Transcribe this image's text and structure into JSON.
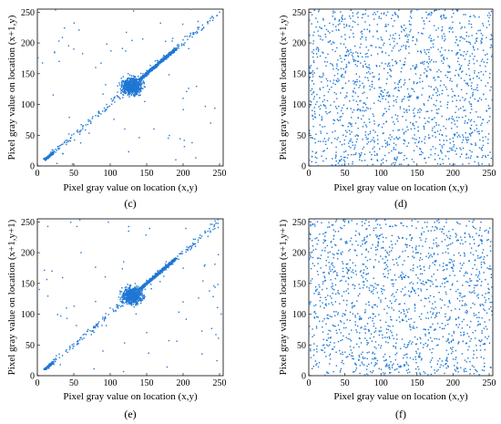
{
  "panels": [
    {
      "caption": "(c)",
      "xlabel": "Pixel gray value on location (x,y)",
      "ylabel": "Pixel gray value on location (x+1,y)"
    },
    {
      "caption": "(d)",
      "xlabel": "Pixel gray value on location (x,y)",
      "ylabel": "Pixel gray value on location (x+1,y)"
    },
    {
      "caption": "(e)",
      "xlabel": "Pixel gray value on location (x,y)",
      "ylabel": "Pixel gray value on location (x+1,y+1)"
    },
    {
      "caption": "(f)",
      "xlabel": "Pixel gray value on location (x,y)",
      "ylabel": "Pixel gray value on location (x+1,y+1)"
    }
  ],
  "chart_data": [
    {
      "type": "scatter",
      "xlabel": "Pixel gray value on location (x,y)",
      "ylabel": "Pixel gray value on location (x+1,y)",
      "xlim": [
        0,
        255
      ],
      "ylim": [
        0,
        255
      ],
      "xticks": [
        0,
        50,
        100,
        150,
        200,
        250
      ],
      "yticks": [
        0,
        50,
        100,
        150,
        200,
        250
      ],
      "distribution": "correlated",
      "series": [
        {
          "color": "#1f77d4",
          "values": [
            [
              12,
              10
            ],
            [
              14,
              15
            ],
            [
              16,
              14
            ],
            [
              18,
              18
            ],
            [
              20,
              21
            ],
            [
              15,
              12
            ],
            [
              22,
              19
            ],
            [
              25,
              27
            ],
            [
              30,
              32
            ],
            [
              40,
              38
            ],
            [
              50,
              52
            ],
            [
              60,
              58
            ],
            [
              70,
              75
            ],
            [
              80,
              82
            ],
            [
              95,
              100
            ],
            [
              105,
              110
            ],
            [
              110,
              120
            ],
            [
              115,
              118
            ],
            [
              120,
              128
            ],
            [
              125,
              130
            ],
            [
              130,
              125
            ],
            [
              135,
              140
            ],
            [
              140,
              138
            ],
            [
              145,
              150
            ],
            [
              150,
              155
            ],
            [
              155,
              158
            ],
            [
              160,
              162
            ],
            [
              165,
              168
            ],
            [
              170,
              172
            ],
            [
              175,
              178
            ],
            [
              180,
              182
            ],
            [
              185,
              186
            ],
            [
              190,
              192
            ],
            [
              200,
              205
            ],
            [
              210,
              212
            ],
            [
              220,
              225
            ],
            [
              240,
              242
            ],
            [
              250,
              250
            ],
            [
              30,
              170
            ],
            [
              50,
              190
            ],
            [
              160,
              60
            ],
            [
              200,
              110
            ],
            [
              190,
              10
            ],
            [
              80,
              160
            ],
            [
              120,
              60
            ]
          ]
        }
      ]
    },
    {
      "type": "scatter",
      "xlabel": "Pixel gray value on location (x,y)",
      "ylabel": "Pixel gray value on location (x+1,y)",
      "xlim": [
        0,
        255
      ],
      "ylim": [
        0,
        255
      ],
      "xticks": [
        0,
        50,
        100,
        150,
        200,
        250
      ],
      "yticks": [
        0,
        50,
        100,
        150,
        200,
        250
      ],
      "distribution": "uniform",
      "series": [
        {
          "color": "#1f77d4",
          "values": [
            [
              10,
              240
            ],
            [
              35,
              200
            ],
            [
              60,
              180
            ],
            [
              85,
              150
            ],
            [
              110,
              120
            ],
            [
              135,
              90
            ],
            [
              160,
              60
            ],
            [
              185,
              30
            ],
            [
              210,
              15
            ],
            [
              235,
              220
            ],
            [
              20,
              40
            ],
            [
              45,
              90
            ],
            [
              70,
              20
            ],
            [
              95,
              230
            ],
            [
              120,
              170
            ],
            [
              145,
              210
            ],
            [
              170,
              110
            ],
            [
              195,
              160
            ],
            [
              220,
              70
            ],
            [
              245,
              130
            ]
          ]
        }
      ]
    },
    {
      "type": "scatter",
      "xlabel": "Pixel gray value on location (x,y)",
      "ylabel": "Pixel gray value on location (x+1,y+1)",
      "xlim": [
        0,
        255
      ],
      "ylim": [
        0,
        255
      ],
      "xticks": [
        0,
        50,
        100,
        150,
        200,
        250
      ],
      "yticks": [
        0,
        50,
        100,
        150,
        200,
        250
      ],
      "distribution": "correlated",
      "series": [
        {
          "color": "#1f77d4",
          "values": [
            [
              12,
              10
            ],
            [
              14,
              15
            ],
            [
              16,
              12
            ],
            [
              18,
              17
            ],
            [
              20,
              22
            ],
            [
              25,
              28
            ],
            [
              30,
              35
            ],
            [
              40,
              42
            ],
            [
              50,
              48
            ],
            [
              60,
              62
            ],
            [
              75,
              72
            ],
            [
              90,
              95
            ],
            [
              100,
              110
            ],
            [
              110,
              115
            ],
            [
              118,
              125
            ],
            [
              125,
              130
            ],
            [
              130,
              122
            ],
            [
              138,
              142
            ],
            [
              145,
              148
            ],
            [
              150,
              155
            ],
            [
              158,
              160
            ],
            [
              165,
              170
            ],
            [
              172,
              175
            ],
            [
              178,
              180
            ],
            [
              185,
              188
            ],
            [
              195,
              198
            ],
            [
              210,
              205
            ],
            [
              230,
              235
            ],
            [
              245,
              248
            ],
            [
              20,
              170
            ],
            [
              60,
              200
            ],
            [
              150,
              70
            ],
            [
              200,
              120
            ],
            [
              90,
              40
            ],
            [
              230,
              180
            ],
            [
              40,
              110
            ]
          ]
        }
      ]
    },
    {
      "type": "scatter",
      "xlabel": "Pixel gray value on location (x,y)",
      "ylabel": "Pixel gray value on location (x+1,y+1)",
      "xlim": [
        0,
        255
      ],
      "ylim": [
        0,
        255
      ],
      "xticks": [
        0,
        50,
        100,
        150,
        200,
        250
      ],
      "yticks": [
        0,
        50,
        100,
        150,
        200,
        250
      ],
      "distribution": "uniform",
      "series": [
        {
          "color": "#1f77d4",
          "values": [
            [
              15,
              230
            ],
            [
              40,
              190
            ],
            [
              65,
              170
            ],
            [
              90,
              140
            ],
            [
              115,
              110
            ],
            [
              140,
              80
            ],
            [
              165,
              50
            ],
            [
              190,
              25
            ],
            [
              215,
              10
            ],
            [
              240,
              215
            ],
            [
              25,
              50
            ],
            [
              50,
              100
            ],
            [
              75,
              30
            ],
            [
              100,
              240
            ],
            [
              125,
              160
            ],
            [
              150,
              200
            ],
            [
              175,
              120
            ],
            [
              200,
              170
            ],
            [
              225,
              60
            ],
            [
              250,
              140
            ]
          ]
        }
      ]
    }
  ]
}
